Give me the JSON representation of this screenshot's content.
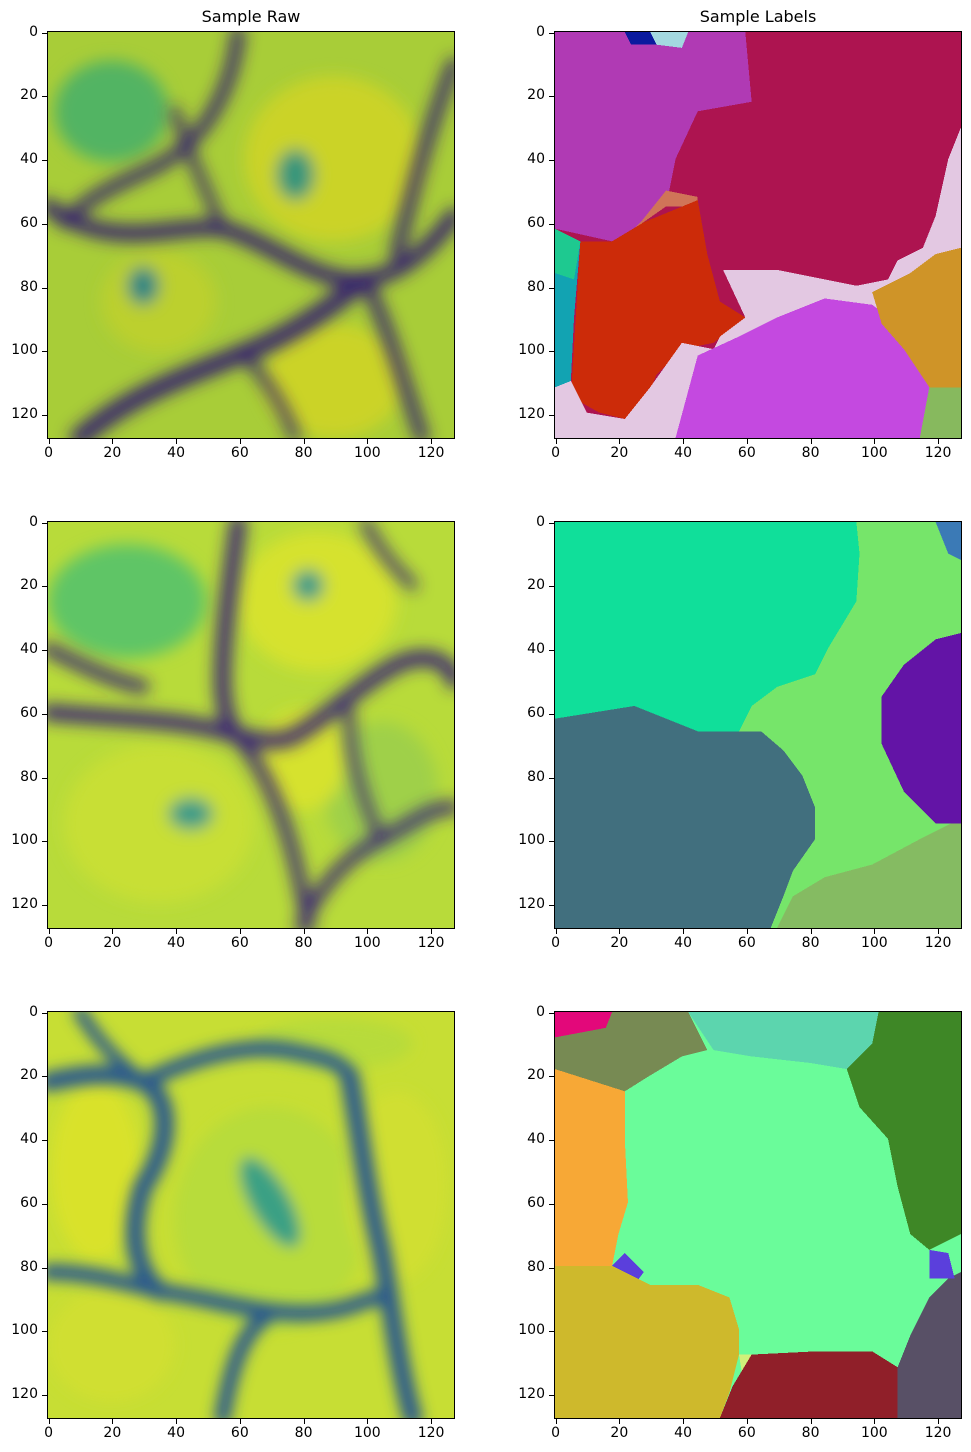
{
  "figure": {
    "col_titles": [
      "Sample Raw",
      "Sample Labels"
    ],
    "ticks": [
      "0",
      "20",
      "40",
      "60",
      "80",
      "100",
      "120"
    ],
    "tick_values": [
      0,
      20,
      40,
      60,
      80,
      100,
      120
    ],
    "extent": 128
  },
  "colors": {
    "raw_dark": "#3d1a6b",
    "raw_mid": "#2f8f8c",
    "raw_green": "#4fbf6a",
    "raw_yellow": "#d8e22c",
    "row1_labels": [
      "#b03ab4",
      "#ad1450",
      "#e3c8e2",
      "#cc2b09",
      "#c449e0",
      "#cf9428",
      "#87b95e",
      "#12a3b2",
      "#d07458"
    ],
    "row2_labels": [
      "#10df9a",
      "#76e56a",
      "#6314a6",
      "#416f7e",
      "#85bb62",
      "#3b7ab6"
    ],
    "row3_labels": [
      "#e3087a",
      "#778a53",
      "#5cd5ae",
      "#3e8726",
      "#f7a836",
      "#6afc9a",
      "#ceb92c",
      "#901f29",
      "#585066",
      "#5b3fdc"
    ]
  }
}
